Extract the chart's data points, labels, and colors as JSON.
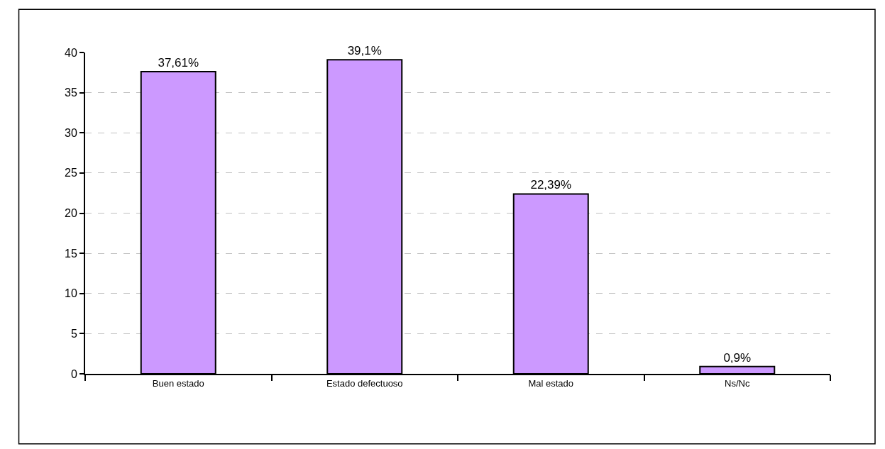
{
  "chart_data": {
    "type": "bar",
    "categories": [
      "Buen estado",
      "Estado defectuoso",
      "Mal estado",
      "Ns/Nc"
    ],
    "values": [
      37.61,
      39.1,
      22.39,
      0.9
    ],
    "color": "#cc99ff",
    "value_labels": [
      "37,61%",
      "39,1%",
      "22,39%",
      "0,9%"
    ],
    "ylim": [
      0,
      40
    ],
    "yticks": [
      0,
      5,
      10,
      15,
      20,
      25,
      30,
      35,
      40
    ],
    "grid": "y"
  }
}
